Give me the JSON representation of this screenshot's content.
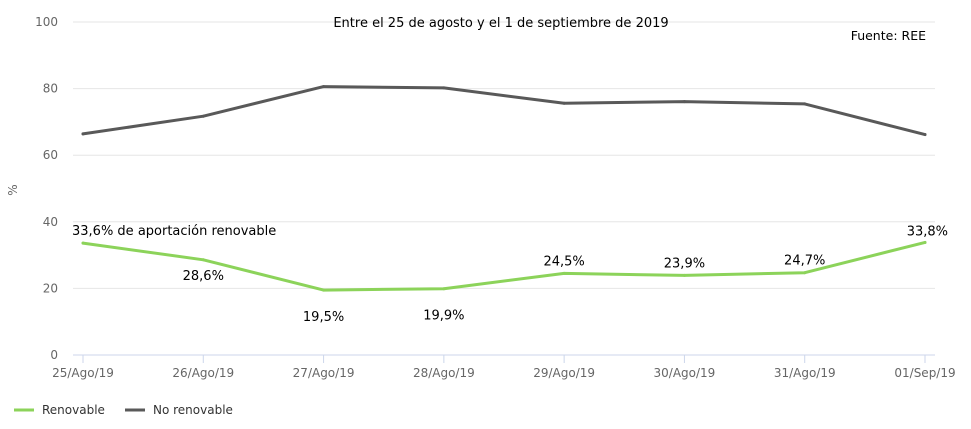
{
  "chart_data": {
    "type": "line",
    "title": "Entre el 25 de agosto y el 1 de septiembre de 2019",
    "source": "Fuente: REE",
    "ylabel": "%",
    "xlabel": "",
    "ylim": [
      0,
      100
    ],
    "yticks": [
      0,
      20,
      40,
      60,
      80,
      100
    ],
    "categories": [
      "25/Ago/19",
      "26/Ago/19",
      "27/Ago/19",
      "28/Ago/19",
      "29/Ago/19",
      "30/Ago/19",
      "31/Ago/19",
      "01/Sep/19"
    ],
    "grid": true,
    "legend_position": "bottom-left",
    "series": [
      {
        "name": "Renovable",
        "color": "#8cd35a",
        "values": [
          33.6,
          28.6,
          19.5,
          19.9,
          24.5,
          23.9,
          24.7,
          33.8
        ],
        "labels": [
          "33,6% de aportación renovable",
          "28,6%",
          "19,5%",
          "19,9%",
          "24,5%",
          "23,9%",
          "24,7%",
          "33,8%"
        ]
      },
      {
        "name": "No renovable",
        "color": "#595959",
        "values": [
          66.4,
          71.7,
          80.6,
          80.2,
          75.6,
          76.1,
          75.4,
          66.2
        ]
      }
    ]
  }
}
